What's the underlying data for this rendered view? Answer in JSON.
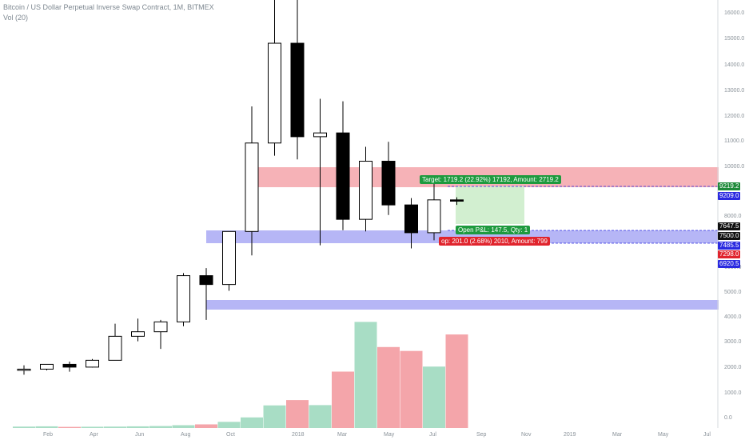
{
  "header": {
    "title": "Bitcoin / US Dollar Perpetual Inverse Swap Contract, 1M, BITMEX",
    "volume": "Vol (20)"
  },
  "colors": {
    "bull_fill": "#ffffff",
    "bear_fill": "#000000",
    "vol_up": "#a8ddc5",
    "vol_down": "#f4a5aa",
    "resistance_zone": "#f4a5aa",
    "support_zone": "#a9a9f4",
    "target_zone": "#d2efd0",
    "axis_text": "#8a9299"
  },
  "price_axis": {
    "ticks": [
      "16000.0",
      "15000.0",
      "14000.0",
      "13000.0",
      "12000.0",
      "11000.0",
      "10000.0",
      "8000.0",
      "6000.0",
      "5000.0",
      "4000.0",
      "3000.0",
      "2000.0",
      "1000.0",
      "0.0"
    ]
  },
  "time_axis": {
    "ticks": [
      "Feb",
      "Apr",
      "Jun",
      "Aug",
      "Oct",
      "2018",
      "Mar",
      "May",
      "Jul",
      "Sep",
      "Nov",
      "2019",
      "Mar",
      "May",
      "Jul"
    ]
  },
  "price_tags": [
    {
      "text": "9219.2",
      "color": "#1e8a3a"
    },
    {
      "text": "9209.0",
      "color": "#2a2ae0"
    },
    {
      "text": "7647.5",
      "color": "#111111"
    },
    {
      "text": "7500.0",
      "color": "#111111"
    },
    {
      "text": "7485.5",
      "color": "#2a2ae0"
    },
    {
      "text": "7298.0",
      "color": "#e0242d"
    },
    {
      "text": "6920.5",
      "color": "#2a2ae0"
    }
  ],
  "position": {
    "target": "Target: 1719.2 (22.92%) 17192, Amount: 2719.2",
    "open_pnl": "Open P&L: 147.5, Qty: 1",
    "stop": "op: 201.0 (2.68%) 2010, Amount: 799"
  },
  "chart_data": {
    "type": "candlestick",
    "title": "Bitcoin / US Dollar Perpetual Inverse Swap Contract, 1M, BITMEX",
    "interval": "1M",
    "exchange": "BITMEX",
    "candles": [
      {
        "period": "2017-01",
        "o": 1000,
        "h": 1150,
        "l": 780,
        "c": 1000,
        "v": 50
      },
      {
        "period": "2017-02",
        "o": 1000,
        "h": 1200,
        "l": 950,
        "c": 1190,
        "v": 60
      },
      {
        "period": "2017-03",
        "o": 1190,
        "h": 1300,
        "l": 900,
        "c": 1080,
        "v": 40
      },
      {
        "period": "2017-04",
        "o": 1080,
        "h": 1400,
        "l": 1060,
        "c": 1350,
        "v": 45
      },
      {
        "period": "2017-05",
        "o": 1350,
        "h": 2800,
        "l": 1350,
        "c": 2300,
        "v": 50
      },
      {
        "period": "2017-06",
        "o": 2300,
        "h": 3000,
        "l": 2100,
        "c": 2480,
        "v": 60
      },
      {
        "period": "2017-07",
        "o": 2480,
        "h": 2950,
        "l": 1800,
        "c": 2870,
        "v": 70
      },
      {
        "period": "2017-08",
        "o": 2870,
        "h": 4800,
        "l": 2700,
        "c": 4700,
        "v": 100
      },
      {
        "period": "2017-09",
        "o": 4700,
        "h": 5000,
        "l": 2950,
        "c": 4350,
        "v": 130
      },
      {
        "period": "2017-10",
        "o": 4350,
        "h": 6450,
        "l": 4100,
        "c": 6450,
        "v": 220
      },
      {
        "period": "2017-11",
        "o": 6450,
        "h": 11400,
        "l": 5500,
        "c": 9950,
        "v": 380
      },
      {
        "period": "2017-12",
        "o": 9950,
        "h": 19800,
        "l": 9450,
        "c": 13900,
        "v": 810
      },
      {
        "period": "2018-01",
        "o": 13900,
        "h": 17100,
        "l": 9300,
        "c": 10200,
        "v": 1000
      },
      {
        "period": "2018-02",
        "o": 10200,
        "h": 11700,
        "l": 5900,
        "c": 10350,
        "v": 820
      },
      {
        "period": "2018-03",
        "o": 10350,
        "h": 11600,
        "l": 6500,
        "c": 6930,
        "v": 2020
      },
      {
        "period": "2018-04",
        "o": 6930,
        "h": 9800,
        "l": 6450,
        "c": 9230,
        "v": 3800
      },
      {
        "period": "2018-05",
        "o": 9230,
        "h": 10000,
        "l": 7100,
        "c": 7500,
        "v": 2900
      },
      {
        "period": "2018-06",
        "o": 7500,
        "h": 7770,
        "l": 5780,
        "c": 6400,
        "v": 2760
      },
      {
        "period": "2018-07",
        "o": 6400,
        "h": 8500,
        "l": 6100,
        "c": 7700,
        "v": 2200
      },
      {
        "period": "2018-08",
        "o": 7700,
        "h": 7800,
        "l": 7500,
        "c": 7647.5,
        "v": 3350
      }
    ],
    "price_axis_labels": [
      "0.0",
      "1000.0",
      "2000.0",
      "3000.0",
      "4000.0",
      "5000.0",
      "6000.0",
      "8000.0",
      "10000.0",
      "11000.0",
      "12000.0",
      "13000.0",
      "14000.0",
      "15000.0",
      "16000.0"
    ],
    "time_axis_labels": [
      "Feb",
      "Apr",
      "Jun",
      "Aug",
      "Oct",
      "2018",
      "Mar",
      "May",
      "Jul",
      "Sep",
      "Nov",
      "2019",
      "Mar",
      "May",
      "Jul"
    ],
    "zones": [
      {
        "name": "resistance",
        "color": "#f4a5aa"
      },
      {
        "name": "support-upper",
        "color": "#a9a9f4"
      },
      {
        "name": "support-lower",
        "color": "#a9a9f4"
      }
    ],
    "grid": false,
    "volume_indicator": "Vol (20)"
  }
}
